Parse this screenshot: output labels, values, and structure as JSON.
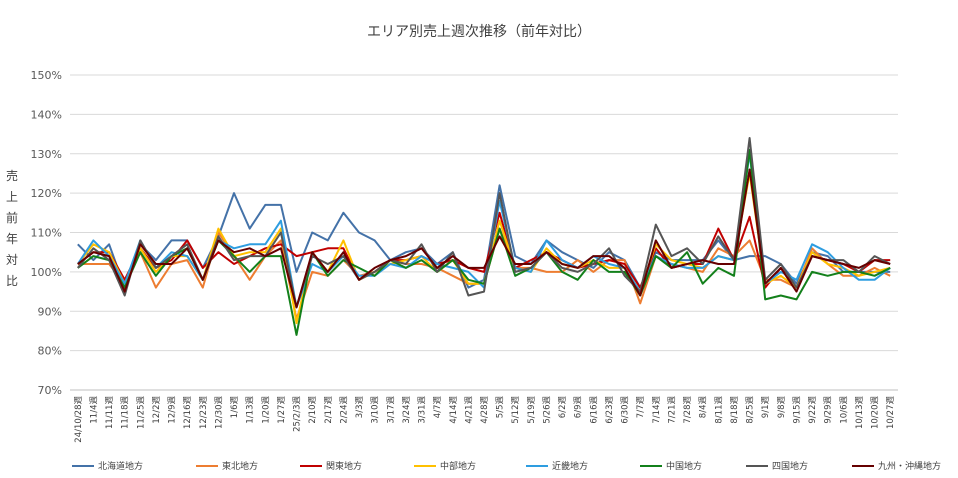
{
  "chart_data": {
    "type": "line",
    "title": "エリア別売上週次推移（前年対比）",
    "ylabel": "売上前年対比",
    "xlabel": "",
    "ylim": [
      70,
      150
    ],
    "yticks": [
      "70%",
      "80%",
      "90%",
      "100%",
      "110%",
      "120%",
      "130%",
      "140%",
      "150%"
    ],
    "ytick_values": [
      70,
      80,
      90,
      100,
      110,
      120,
      130,
      140,
      150
    ],
    "grid": true,
    "legend_position": "bottom",
    "categories": [
      "24/10/28週",
      "11/4週",
      "11/11週",
      "11/18週",
      "11/25週",
      "12/2週",
      "12/9週",
      "12/16週",
      "12/23週",
      "12/30週",
      "1/6週",
      "1/13週",
      "1/20週",
      "1/27週",
      "25/2/3週",
      "2/10週",
      "2/17週",
      "2/24週",
      "3/3週",
      "3/10週",
      "3/17週",
      "3/24週",
      "3/31週",
      "4/7週",
      "4/14週",
      "4/21週",
      "4/28週",
      "5/5週",
      "5/12週",
      "5/19週",
      "5/26週",
      "6/2週",
      "6/9週",
      "6/16週",
      "6/23週",
      "6/30週",
      "7/7週",
      "7/14週",
      "7/21週",
      "7/28週",
      "8/4週",
      "8/11週",
      "8/18週",
      "8/25週",
      "9/1週",
      "9/8週",
      "9/15週",
      "9/22週",
      "9/29週",
      "10/6週",
      "10/13週",
      "10/20週",
      "10/27週"
    ],
    "x_labels_shown": [
      "24/10/28週",
      "11/4週",
      "11/11週",
      "11/18週",
      "11/25週",
      "12/2週",
      "12/9週",
      "12/16週",
      "12/23週",
      "12/30週",
      "1/6週",
      "1/13週",
      "1/20週",
      "1/27週",
      "25/2/3週",
      "2/10週",
      "2/17週",
      "2/24週",
      "3/3週",
      "3/10週",
      "3/17週",
      "3/24週",
      "3/31週",
      "4/7週",
      "4/14週",
      "4/21週",
      "4/28週",
      "5/5週",
      "5/12週",
      "5/19週",
      "5/26週",
      "6/2週",
      "6/9週",
      "6/16週",
      "6/23週",
      "6/30週",
      "7/7週",
      "7/14週",
      "7/21週",
      "7/28週",
      "8/4週",
      "8/11週",
      "8/18週",
      "8/25週",
      "9/1週",
      "9/8週",
      "9/15週",
      "9/22週",
      "9/29週",
      "10/6週",
      "10/13週",
      "10/20週",
      "10/27週"
    ],
    "series": [
      {
        "name": "北海道地方",
        "color": "#4472a8",
        "values": [
          107,
          103,
          107,
          96,
          107,
          103,
          108,
          108,
          101,
          109,
          120,
          111,
          117,
          117,
          100,
          110,
          108,
          115,
          110,
          108,
          103,
          105,
          106,
          102,
          105,
          96,
          98,
          122,
          104,
          102,
          108,
          105,
          103,
          101,
          105,
          103,
          96,
          105,
          103,
          103,
          103,
          108,
          103,
          104,
          104,
          102,
          97,
          105,
          104,
          100,
          100,
          100,
          100
        ]
      },
      {
        "name": "東北地方",
        "color": "#ed7d31",
        "values": [
          102,
          102,
          102,
          97,
          105,
          96,
          102,
          103,
          96,
          110,
          104,
          98,
          104,
          108,
          88,
          100,
          99,
          103,
          99,
          100,
          103,
          102,
          102,
          101,
          99,
          97,
          97,
          111,
          101,
          101,
          100,
          100,
          103,
          100,
          103,
          103,
          92,
          104,
          102,
          101,
          100,
          106,
          104,
          108,
          98,
          98,
          96,
          106,
          102,
          99,
          99,
          101,
          99
        ]
      },
      {
        "name": "関東地方",
        "color": "#c00000",
        "values": [
          102,
          105,
          105,
          98,
          106,
          101,
          103,
          108,
          101,
          105,
          102,
          104,
          106,
          107,
          104,
          105,
          106,
          106,
          98,
          100,
          103,
          103,
          104,
          102,
          103,
          101,
          100,
          115,
          101,
          103,
          105,
          103,
          101,
          102,
          103,
          102,
          96,
          106,
          101,
          102,
          102,
          111,
          103,
          114,
          96,
          101,
          96,
          104,
          103,
          102,
          100,
          103,
          103
        ]
      },
      {
        "name": "中部地方",
        "color": "#ffc000",
        "values": [
          102,
          107,
          105,
          97,
          106,
          100,
          104,
          104,
          98,
          111,
          104,
          105,
          105,
          111,
          87,
          105,
          100,
          108,
          98,
          100,
          102,
          103,
          104,
          100,
          103,
          97,
          97,
          113,
          101,
          100,
          106,
          102,
          101,
          103,
          101,
          101,
          95,
          107,
          103,
          102,
          101,
          104,
          103,
          125,
          97,
          99,
          96,
          105,
          102,
          101,
          99,
          100,
          101
        ]
      },
      {
        "name": "近畿地方",
        "color": "#2e9de0",
        "values": [
          102,
          108,
          104,
          97,
          108,
          101,
          105,
          104,
          98,
          108,
          106,
          107,
          107,
          113,
          91,
          102,
          100,
          104,
          99,
          99,
          102,
          101,
          104,
          102,
          101,
          100,
          96,
          118,
          101,
          100,
          108,
          103,
          101,
          104,
          102,
          101,
          95,
          104,
          102,
          101,
          101,
          104,
          103,
          130,
          97,
          100,
          98,
          107,
          105,
          101,
          98,
          98,
          101
        ]
      },
      {
        "name": "中国地方",
        "color": "#13801b",
        "values": [
          101,
          104,
          103,
          96,
          105,
          99,
          104,
          106,
          98,
          108,
          104,
          100,
          104,
          104,
          84,
          105,
          99,
          103,
          101,
          99,
          103,
          101,
          103,
          100,
          103,
          98,
          97,
          111,
          99,
          101,
          105,
          100,
          98,
          103,
          100,
          100,
          94,
          104,
          101,
          105,
          97,
          101,
          99,
          131,
          93,
          94,
          93,
          100,
          99,
          100,
          100,
          99,
          101
        ]
      },
      {
        "name": "四国地方",
        "color": "#555555",
        "values": [
          101,
          106,
          103,
          94,
          108,
          101,
          104,
          107,
          98,
          109,
          103,
          104,
          104,
          110,
          91,
          104,
          102,
          104,
          98,
          100,
          103,
          102,
          107,
          100,
          105,
          94,
          95,
          120,
          100,
          101,
          105,
          101,
          100,
          102,
          106,
          99,
          95,
          112,
          104,
          106,
          102,
          109,
          103,
          134,
          98,
          102,
          96,
          104,
          103,
          103,
          100,
          104,
          102
        ]
      },
      {
        "name": "九州・沖縄地方",
        "color": "#660000",
        "values": [
          102,
          105,
          104,
          95,
          107,
          102,
          102,
          106,
          98,
          108,
          105,
          106,
          104,
          106,
          91,
          105,
          100,
          105,
          98,
          101,
          103,
          104,
          106,
          101,
          104,
          101,
          101,
          109,
          102,
          102,
          105,
          102,
          101,
          104,
          104,
          101,
          94,
          108,
          101,
          102,
          103,
          102,
          102,
          126,
          97,
          101,
          95,
          104,
          103,
          102,
          101,
          103,
          102
        ]
      }
    ]
  }
}
